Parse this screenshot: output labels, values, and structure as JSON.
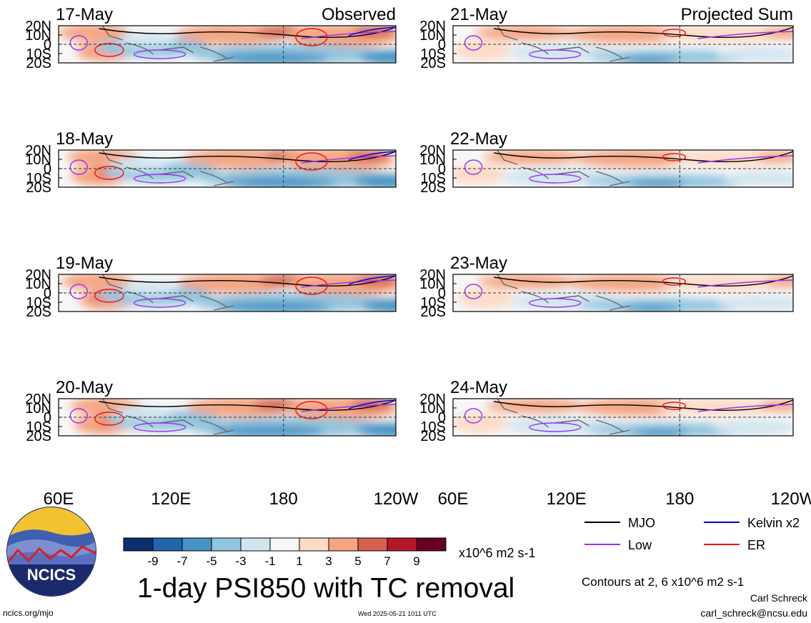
{
  "chart_data": {
    "type": "heatmap",
    "title": "1-day PSI850 with TC removal",
    "column_titles": [
      "Observed",
      "Projected Sum"
    ],
    "panels": [
      {
        "date": "17-May",
        "column": "Observed"
      },
      {
        "date": "18-May",
        "column": "Observed"
      },
      {
        "date": "19-May",
        "column": "Observed"
      },
      {
        "date": "20-May",
        "column": "Observed"
      },
      {
        "date": "21-May",
        "column": "Projected Sum"
      },
      {
        "date": "22-May",
        "column": "Projected Sum"
      },
      {
        "date": "23-May",
        "column": "Projected Sum"
      },
      {
        "date": "24-May",
        "column": "Projected Sum"
      }
    ],
    "y_ticks": [
      "20N",
      "10N",
      "0",
      "10S",
      "20S"
    ],
    "y_range": [
      -20,
      20
    ],
    "x_ticks": [
      "60E",
      "120E",
      "180",
      "120W"
    ],
    "x_range": [
      60,
      240
    ],
    "colorbar": {
      "ticks": [
        "-9",
        "-7",
        "-5",
        "-3",
        "-1",
        "1",
        "3",
        "5",
        "7",
        "9"
      ],
      "units": "x10^6 m2 s-1",
      "colors": [
        "#08306b",
        "#2166ac",
        "#4393c3",
        "#92c5de",
        "#d1e5f0",
        "#f7f7f7",
        "#fddbc7",
        "#f4a582",
        "#d6604d",
        "#b2182b",
        "#67001f"
      ]
    },
    "contour_legend": [
      {
        "label": "MJO",
        "color": "#000000"
      },
      {
        "label": "Kelvin x2",
        "color": "#0000dd"
      },
      {
        "label": "Low",
        "color": "#9933ee"
      },
      {
        "label": "ER",
        "color": "#ee1111"
      }
    ],
    "contour_note": "Contours at 2, 6 x10^6 m2 s-1",
    "grid": "dashed lines at equator and 180"
  },
  "footer": {
    "logo_text": "NCICS",
    "url": "ncics.org/mjo",
    "timestamp": "Wed 2025-05-21 1011 UTC",
    "author": "Carl Schreck",
    "email": "carl_schreck@ncsu.edu"
  }
}
